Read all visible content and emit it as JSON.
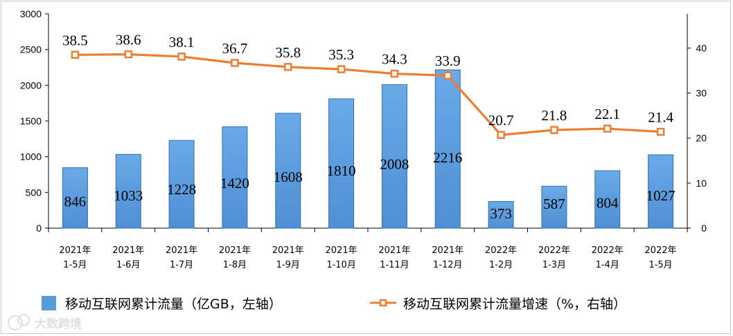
{
  "chart_data": {
    "type": "bar+line",
    "categories": [
      [
        "2021年",
        "1-5月"
      ],
      [
        "2021年",
        "1-6月"
      ],
      [
        "2021年",
        "1-7月"
      ],
      [
        "2021年",
        "1-8月"
      ],
      [
        "2021年",
        "1-9月"
      ],
      [
        "2021年",
        "1-10月"
      ],
      [
        "2021年",
        "1-11月"
      ],
      [
        "2021年",
        "1-12月"
      ],
      [
        "2022年",
        "1-2月"
      ],
      [
        "2022年",
        "1-3月"
      ],
      [
        "2022年",
        "1-4月"
      ],
      [
        "2022年",
        "1-5月"
      ]
    ],
    "series": [
      {
        "name": "移动互联网累计流量（亿GB，左轴）",
        "type": "bar",
        "axis": "left",
        "color": "#5b9bd5",
        "values": [
          846,
          1033,
          1228,
          1420,
          1608,
          1810,
          2008,
          2216,
          373,
          587,
          804,
          1027
        ]
      },
      {
        "name": "移动互联网累计流量增速（%，右轴）",
        "type": "line",
        "axis": "right",
        "color": "#ed7d31",
        "values": [
          38.5,
          38.6,
          38.1,
          36.7,
          35.8,
          35.3,
          34.3,
          33.9,
          20.7,
          21.8,
          22.1,
          21.4
        ]
      }
    ],
    "left_axis": {
      "ylim": [
        0,
        3000
      ],
      "ticks": [
        0,
        500,
        1000,
        1500,
        2000,
        2500,
        3000
      ]
    },
    "right_axis": {
      "ylim": [
        0,
        47.6
      ],
      "ticks": [
        0,
        10,
        20,
        30,
        40
      ]
    },
    "legend_position": "bottom",
    "grid": false
  },
  "watermark": "大数跨境"
}
